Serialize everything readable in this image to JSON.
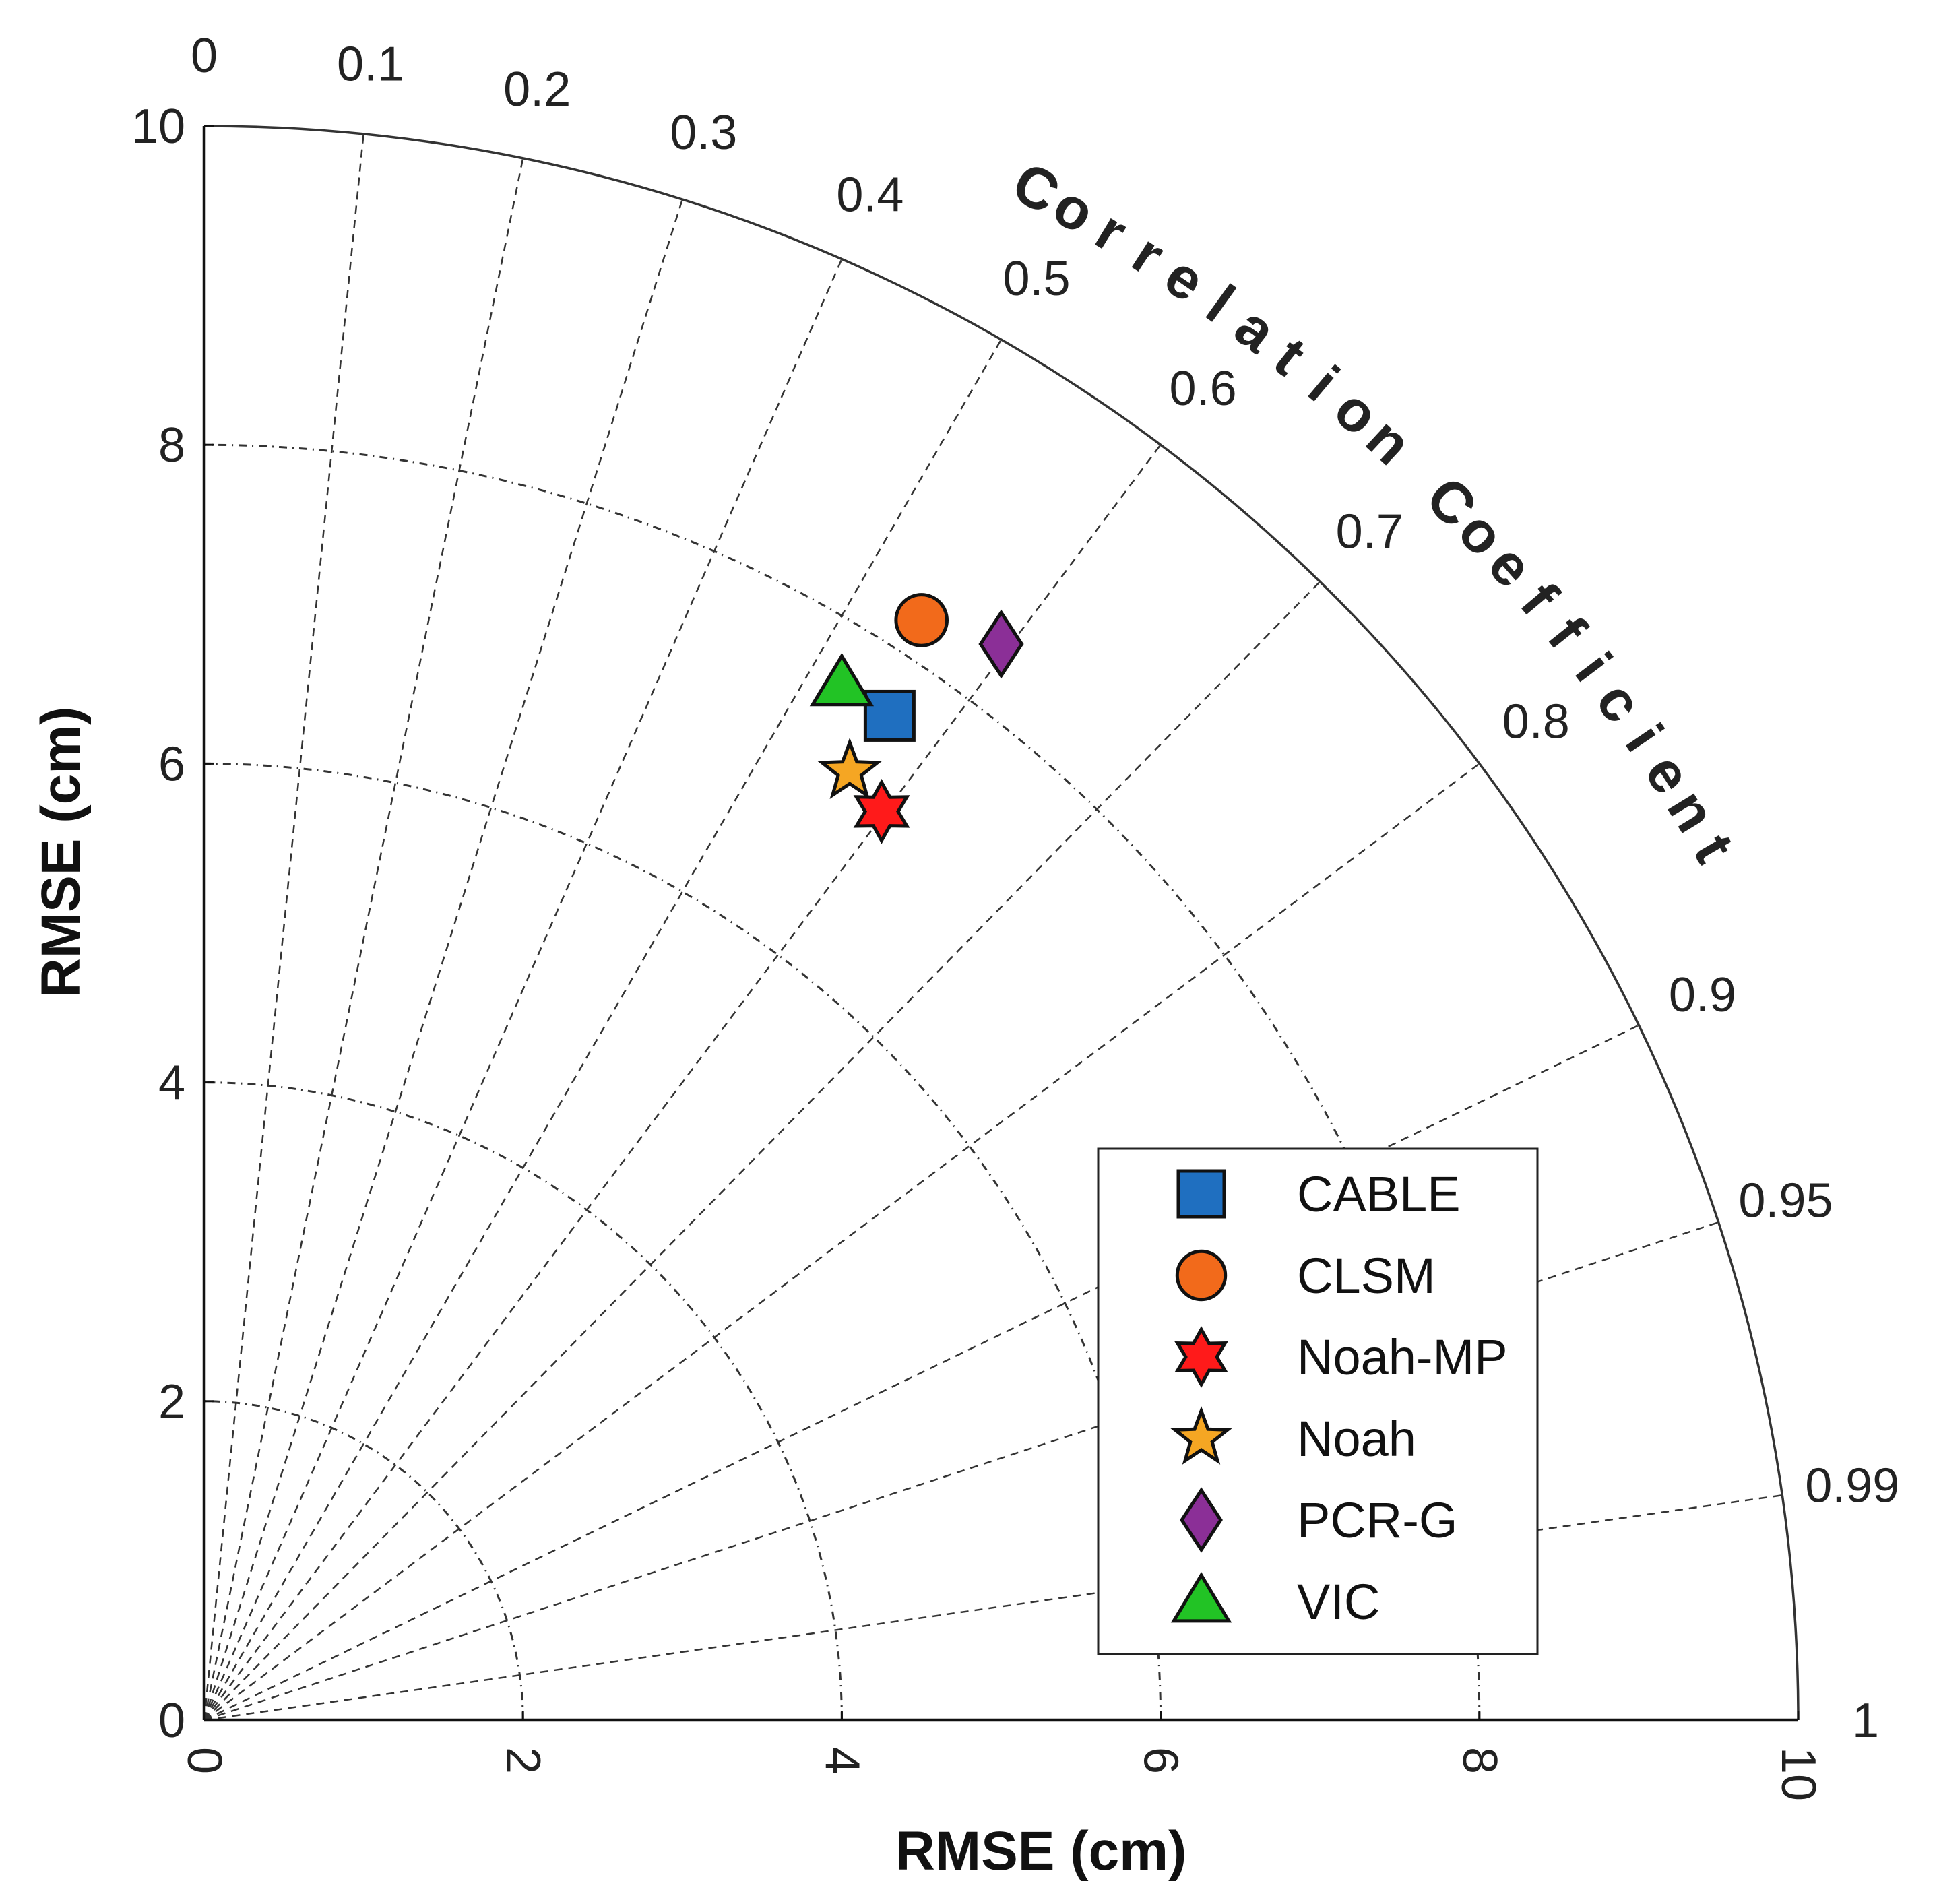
{
  "chart_data": {
    "type": "taylor",
    "yaxis": {
      "label": "RMSE (cm)",
      "ticks": [
        "0",
        "2",
        "4",
        "6",
        "8",
        "10"
      ],
      "range": [
        0,
        10
      ]
    },
    "xaxis": {
      "label": "RMSE (cm)",
      "ticks": [
        "0",
        "2",
        "4",
        "6",
        "8",
        "10"
      ],
      "range": [
        0,
        10
      ]
    },
    "rms_circles": [
      2,
      4,
      6,
      8
    ],
    "correlation": {
      "title": "Correlation Coefficient",
      "ticks": [
        "0",
        "0.1",
        "0.2",
        "0.3",
        "0.4",
        "0.5",
        "0.6",
        "0.7",
        "0.8",
        "0.9",
        "0.95",
        "0.99",
        "1"
      ],
      "values": [
        0,
        0.1,
        0.2,
        0.3,
        0.4,
        0.5,
        0.6,
        0.7,
        0.8,
        0.9,
        0.95,
        0.99,
        1
      ]
    },
    "series": [
      {
        "name": "CABLE",
        "marker": "square",
        "color": "#1f6fc0",
        "x": 4.3,
        "y": 6.3
      },
      {
        "name": "CLSM",
        "marker": "circle",
        "color": "#f26a1b",
        "x": 4.5,
        "y": 6.9
      },
      {
        "name": "Noah-MP",
        "marker": "hexagram",
        "color": "#ff1a1a",
        "x": 4.25,
        "y": 5.7
      },
      {
        "name": "Noah",
        "marker": "star",
        "color": "#f5a623",
        "x": 4.05,
        "y": 5.95
      },
      {
        "name": "PCR-G",
        "marker": "diamond",
        "color": "#8b2f97",
        "x": 5.0,
        "y": 6.75
      },
      {
        "name": "VIC",
        "marker": "triangle",
        "color": "#22c325",
        "x": 4.0,
        "y": 6.5
      }
    ],
    "legend_position": "lower-right"
  }
}
